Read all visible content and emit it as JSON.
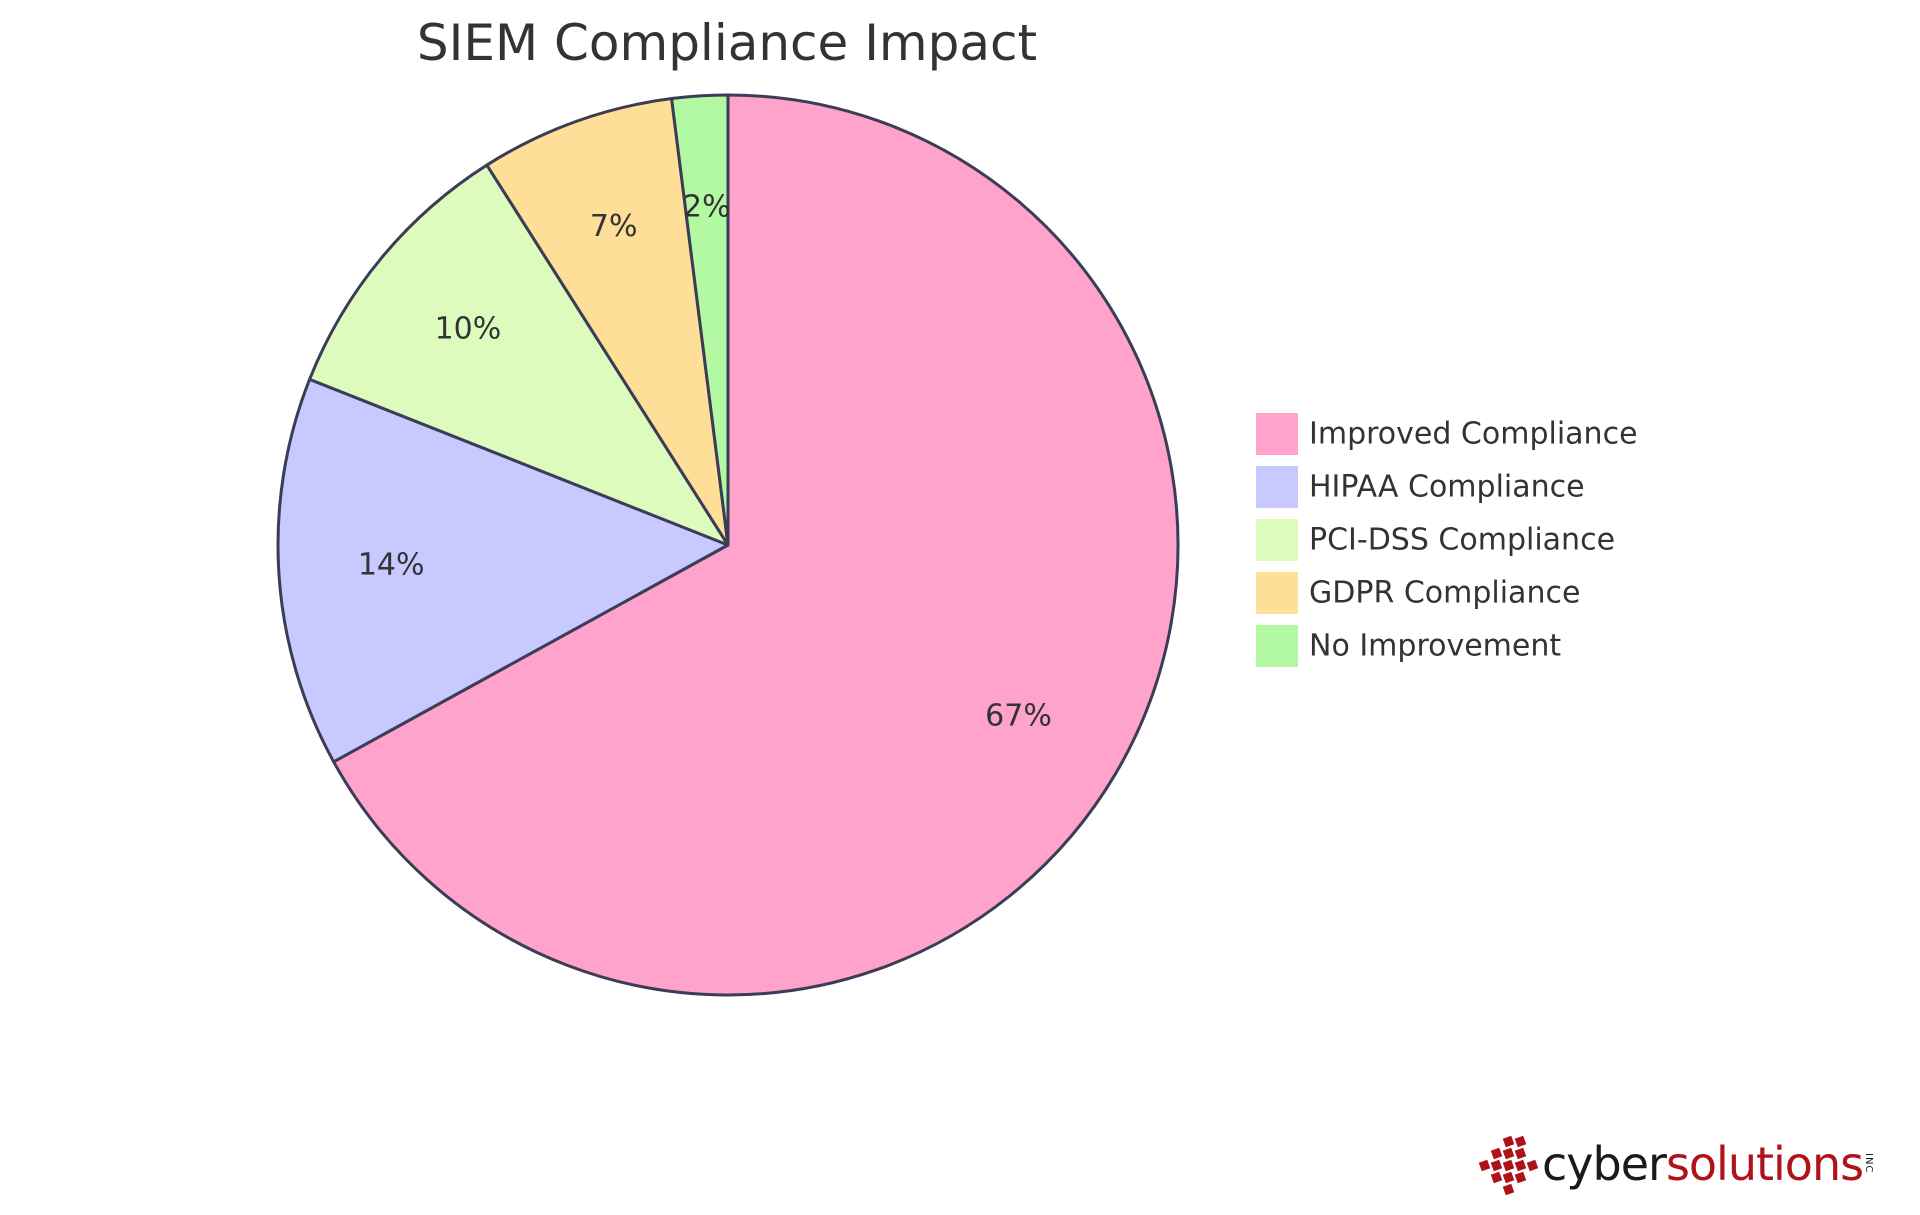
{
  "chart_data": {
    "type": "pie",
    "title": "SIEM Compliance Impact",
    "slices": [
      {
        "label": "Improved Compliance",
        "value": 67,
        "display": "67%",
        "color": "#ffa3cd"
      },
      {
        "label": "HIPAA Compliance",
        "value": 14,
        "display": "14%",
        "color": "#c8caff"
      },
      {
        "label": "PCI-DSS Compliance",
        "value": 10,
        "display": "10%",
        "color": "#dcfbbc"
      },
      {
        "label": "GDPR Compliance",
        "value": 7,
        "display": "7%",
        "color": "#ffdf98"
      },
      {
        "label": "No Improvement",
        "value": 2,
        "display": "2%",
        "color": "#b3f8a3"
      }
    ],
    "start": "top",
    "direction": "clockwise",
    "legend_position": "right"
  },
  "logo": {
    "cyber": "cyber",
    "solutions": "solutions",
    "inc": "INC",
    "brand_color": "#b0121b"
  }
}
